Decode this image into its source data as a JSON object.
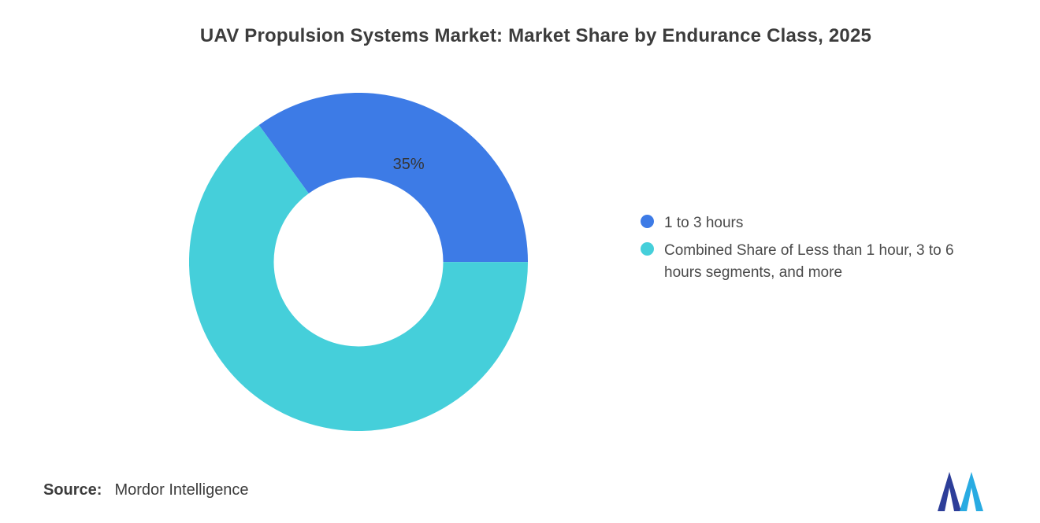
{
  "chart_data": {
    "type": "pie",
    "subtype": "donut",
    "title": "UAV Propulsion Systems Market: Market Share by Endurance Class, 2025",
    "start_angle_deg": -36,
    "inner_radius_ratio": 0.5,
    "legend_position": "right",
    "grid": false,
    "segments": [
      {
        "label": "1 to 3 hours",
        "value": 35,
        "color": "#3d7be6",
        "data_label": "35%"
      },
      {
        "label": "Combined Share of Less than 1 hour, 3 to 6 hours segments, and more",
        "value": 65,
        "color": "#45cfda",
        "data_label": ""
      }
    ]
  },
  "footer": {
    "source_label": "Source:",
    "source_value": "Mordor Intelligence"
  },
  "logo": {
    "name": "mordor-intelligence-logo",
    "colors": {
      "dark": "#2d3e99",
      "light": "#29abe2"
    }
  }
}
